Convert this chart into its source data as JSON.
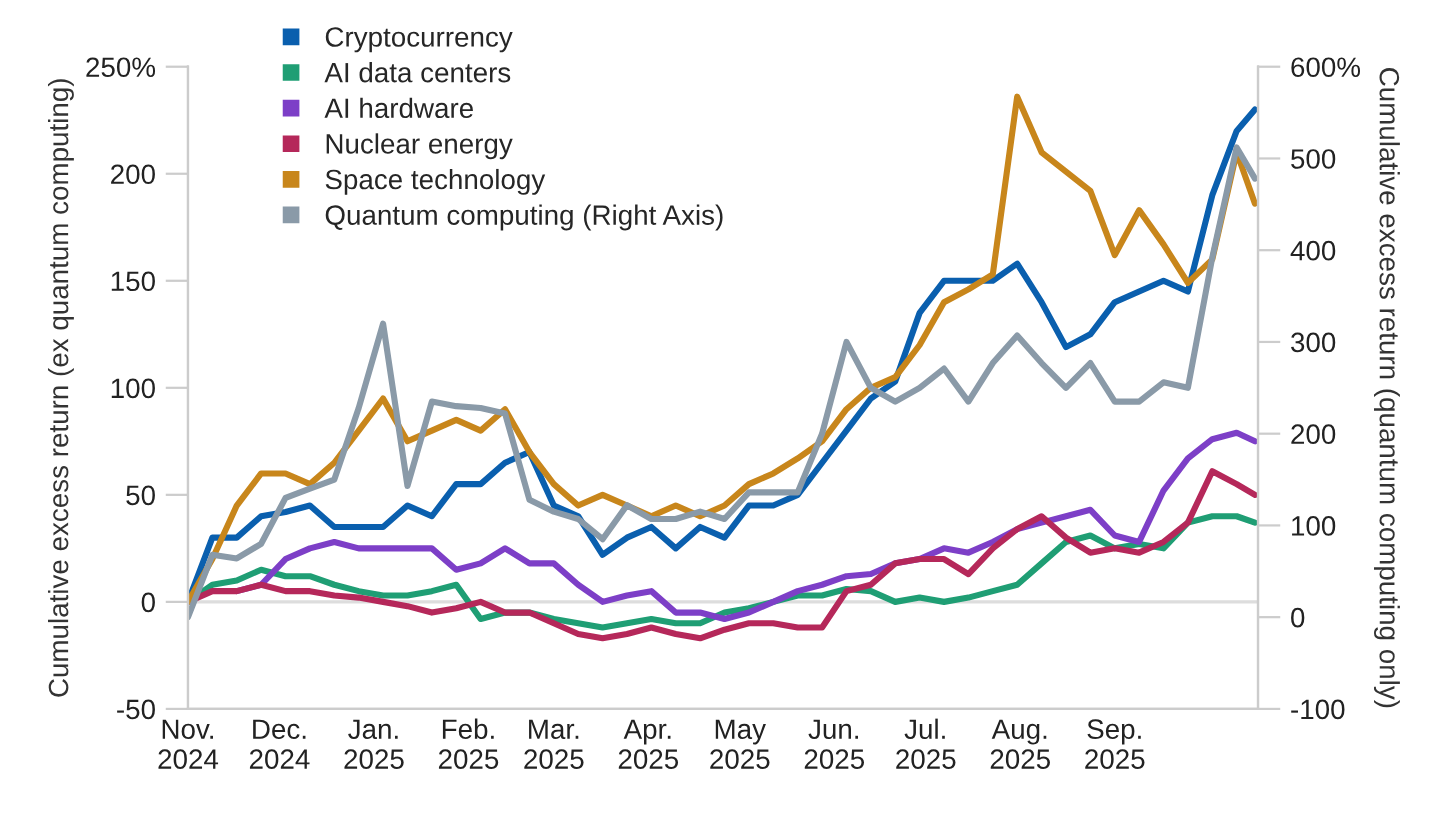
{
  "chart_data": {
    "type": "line",
    "xlabel": null,
    "ylabel": "Cumulative excess return (ex quantum computing)",
    "y2label": "Cumulative excess return (quantum computing only)",
    "x": [
      "2024-11-01",
      "2024-11-09",
      "2024-11-17",
      "2024-11-25",
      "2024-12-03",
      "2024-12-11",
      "2024-12-19",
      "2024-12-27",
      "2025-01-04",
      "2025-01-12",
      "2025-01-20",
      "2025-01-28",
      "2025-02-05",
      "2025-02-13",
      "2025-02-21",
      "2025-03-01",
      "2025-03-09",
      "2025-03-17",
      "2025-03-25",
      "2025-04-02",
      "2025-04-10",
      "2025-04-18",
      "2025-04-26",
      "2025-05-04",
      "2025-05-12",
      "2025-05-20",
      "2025-05-28",
      "2025-06-05",
      "2025-06-13",
      "2025-06-21",
      "2025-06-29",
      "2025-07-07",
      "2025-07-15",
      "2025-07-23",
      "2025-07-31",
      "2025-08-08",
      "2025-08-16",
      "2025-08-24",
      "2025-09-01",
      "2025-09-09",
      "2025-09-17",
      "2025-09-25",
      "2025-10-03",
      "2025-10-11",
      "2025-10-17"
    ],
    "series": [
      {
        "name": "Cryptocurrency",
        "color": "#0a5fae",
        "values": [
          0,
          30,
          30,
          40,
          42,
          45,
          35,
          35,
          35,
          45,
          40,
          55,
          55,
          65,
          70,
          45,
          40,
          22,
          30,
          35,
          25,
          35,
          30,
          45,
          45,
          50,
          65,
          80,
          95,
          103,
          135,
          150,
          150,
          150,
          158,
          140,
          119,
          125,
          140,
          145,
          150,
          145,
          190,
          220,
          230
        ]
      },
      {
        "name": "AI data centers",
        "color": "#1f9e74",
        "values": [
          0,
          8,
          10,
          15,
          12,
          12,
          8,
          5,
          3,
          3,
          5,
          8,
          -8,
          -5,
          -5,
          -8,
          -10,
          -12,
          -10,
          -8,
          -10,
          -10,
          -5,
          -3,
          0,
          3,
          3,
          6,
          5,
          0,
          2,
          0,
          2,
          5,
          8,
          18,
          28,
          31,
          25,
          27,
          25,
          37,
          40,
          40,
          37
        ]
      },
      {
        "name": "AI hardware",
        "color": "#7d3fc7",
        "values": [
          null,
          null,
          5,
          8,
          20,
          25,
          28,
          25,
          25,
          25,
          25,
          15,
          18,
          25,
          18,
          18,
          8,
          0,
          3,
          5,
          -5,
          -5,
          -8,
          -5,
          0,
          5,
          8,
          12,
          13,
          18,
          20,
          25,
          23,
          28,
          34,
          37,
          40,
          43,
          31,
          28,
          52,
          67,
          76,
          79,
          75
        ]
      },
      {
        "name": "Nuclear energy",
        "color": "#b5285a",
        "values": [
          0,
          5,
          5,
          8,
          5,
          5,
          3,
          2,
          0,
          -2,
          -5,
          -3,
          0,
          -5,
          -5,
          -10,
          -15,
          -17,
          -15,
          -12,
          -15,
          -17,
          -13,
          -10,
          -10,
          -12,
          -12,
          5,
          8,
          18,
          20,
          20,
          13,
          25,
          34,
          40,
          30,
          23,
          25,
          23,
          28,
          37,
          61,
          55,
          50
        ]
      },
      {
        "name": "Space technology",
        "color": "#c8861b",
        "values": [
          0,
          20,
          45,
          60,
          60,
          55,
          65,
          80,
          95,
          75,
          80,
          85,
          80,
          90,
          70,
          55,
          45,
          50,
          45,
          40,
          45,
          40,
          45,
          55,
          60,
          67,
          75,
          90,
          100,
          105,
          120,
          140,
          146,
          153,
          236,
          210,
          201,
          192,
          162,
          183,
          167,
          149,
          160,
          210,
          186
        ]
      },
      {
        "name": "Quantum computing (Right Axis)",
        "color": "#8a9aa8",
        "axis": "y2",
        "values": [
          0,
          68,
          64,
          80,
          130,
          140,
          150,
          228,
          320,
          143,
          235,
          230,
          228,
          222,
          128,
          115,
          107,
          85,
          122,
          107,
          107,
          115,
          107,
          136,
          136,
          136,
          200,
          300,
          250,
          235,
          250,
          271,
          235,
          277,
          307,
          277,
          250,
          277,
          235,
          235,
          256,
          250,
          392,
          512,
          478
        ]
      }
    ],
    "xlim": [
      "2024-11-01",
      "2025-10-18"
    ],
    "xticks": [
      {
        "value": "2024-11-01",
        "label": "Nov.\n2024"
      },
      {
        "value": "2024-12-01",
        "label": "Dec.\n2024"
      },
      {
        "value": "2025-01-01",
        "label": "Jan.\n2025"
      },
      {
        "value": "2025-02-01",
        "label": "Feb.\n2025"
      },
      {
        "value": "2025-03-01",
        "label": "Mar.\n2025"
      },
      {
        "value": "2025-04-01",
        "label": "Apr.\n2025"
      },
      {
        "value": "2025-05-01",
        "label": "May\n2025"
      },
      {
        "value": "2025-06-01",
        "label": "Jun.\n2025"
      },
      {
        "value": "2025-07-01",
        "label": "Jul.\n2025"
      },
      {
        "value": "2025-08-01",
        "label": "Aug.\n2025"
      },
      {
        "value": "2025-09-01",
        "label": "Sep.\n2025"
      }
    ],
    "ylim": [
      -50,
      250
    ],
    "yticks": [
      -50,
      0,
      50,
      100,
      150,
      200,
      {
        "value": 250,
        "label": "250%"
      }
    ],
    "y2lim": [
      -100,
      600
    ],
    "y2ticks": [
      -100,
      0,
      100,
      200,
      300,
      400,
      500,
      {
        "value": 600,
        "label": "600%"
      }
    ],
    "ref_lines": [
      {
        "axis": "y",
        "value": 0,
        "color": "#dddddd"
      }
    ],
    "legend": "top left",
    "grid": false,
    "marker": "none",
    "line_style": "solid"
  }
}
